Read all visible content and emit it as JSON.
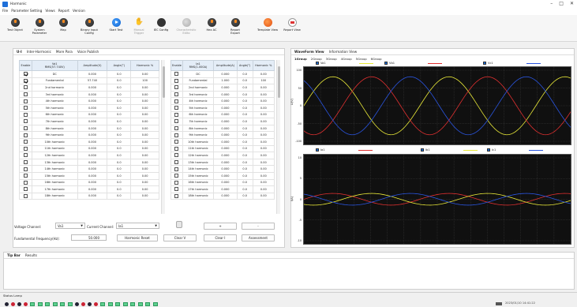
{
  "window": {
    "title": "Harmonic",
    "min": "–",
    "max": "□",
    "close": "✕"
  },
  "menu": [
    "File",
    "Parameter Setting",
    "Views",
    "Report",
    "Version"
  ],
  "toolbar": [
    {
      "label": "Test Object",
      "icon": "dark",
      "enabled": true
    },
    {
      "label": "System\nParameter",
      "icon": "dark",
      "enabled": true
    },
    {
      "label": "Map",
      "icon": "dark",
      "enabled": true
    },
    {
      "label": "Binary input\nConfig",
      "icon": "dark",
      "enabled": true
    },
    {
      "label": "Start Test",
      "icon": "blue",
      "enabled": true
    },
    {
      "label": "Manual\nTrigger",
      "icon": "hand",
      "enabled": false
    },
    {
      "label": "IEC Config",
      "icon": "gear",
      "enabled": true
    },
    {
      "label": "Characteristic\nEdito",
      "icon": "gray",
      "enabled": false
    },
    {
      "label": "Hex AC",
      "icon": "dark",
      "enabled": true
    },
    {
      "label": "Report\nExport",
      "icon": "dark",
      "enabled": true
    },
    {
      "label": "Template View",
      "icon": "orange",
      "enabled": true
    },
    {
      "label": "Report View",
      "icon": "doc",
      "enabled": true
    }
  ],
  "left_tabs": [
    "U-I",
    "Inter-Harmonic",
    "More Para",
    "Voice Publish"
  ],
  "table_left": {
    "headers": [
      "Enable",
      "Va1\nRMS(57.740V)",
      "Amplitude(V)",
      "Angle(°)",
      "Harmonic %"
    ],
    "rows": [
      {
        "on": true,
        "name": "DC",
        "amp": "0.000",
        "ang": "0.0",
        "pct": "0.00"
      },
      {
        "on": true,
        "name": "Fundamental",
        "amp": "57.740",
        "ang": "0.0",
        "pct": "100"
      },
      {
        "on": false,
        "name": "2nd harmonic",
        "amp": "0.000",
        "ang": "0.0",
        "pct": "0.00"
      },
      {
        "on": false,
        "name": "3rd harmonic",
        "amp": "0.000",
        "ang": "0.0",
        "pct": "0.00"
      },
      {
        "on": false,
        "name": "4th harmonic",
        "amp": "0.000",
        "ang": "0.0",
        "pct": "0.00"
      },
      {
        "on": false,
        "name": "5th harmonic",
        "amp": "0.000",
        "ang": "0.0",
        "pct": "0.00"
      },
      {
        "on": false,
        "name": "6th harmonic",
        "amp": "0.000",
        "ang": "0.0",
        "pct": "0.00"
      },
      {
        "on": false,
        "name": "7th harmonic",
        "amp": "0.000",
        "ang": "0.0",
        "pct": "0.00"
      },
      {
        "on": false,
        "name": "8th harmonic",
        "amp": "0.000",
        "ang": "0.0",
        "pct": "0.00"
      },
      {
        "on": false,
        "name": "9th harmonic",
        "amp": "0.000",
        "ang": "0.0",
        "pct": "0.00"
      },
      {
        "on": false,
        "name": "10th harmonic",
        "amp": "0.000",
        "ang": "0.0",
        "pct": "0.00"
      },
      {
        "on": false,
        "name": "11th harmonic",
        "amp": "0.000",
        "ang": "0.0",
        "pct": "0.00"
      },
      {
        "on": false,
        "name": "12th harmonic",
        "amp": "0.000",
        "ang": "0.0",
        "pct": "0.00"
      },
      {
        "on": false,
        "name": "13th harmonic",
        "amp": "0.000",
        "ang": "0.0",
        "pct": "0.00"
      },
      {
        "on": false,
        "name": "14th harmonic",
        "amp": "0.000",
        "ang": "0.0",
        "pct": "0.00"
      },
      {
        "on": false,
        "name": "15th harmonic",
        "amp": "0.000",
        "ang": "0.0",
        "pct": "0.00"
      },
      {
        "on": false,
        "name": "16th harmonic",
        "amp": "0.000",
        "ang": "0.0",
        "pct": "0.00"
      },
      {
        "on": false,
        "name": "17th harmonic",
        "amp": "0.000",
        "ang": "0.0",
        "pct": "0.00"
      },
      {
        "on": false,
        "name": "18th harmonic",
        "amp": "0.000",
        "ang": "0.0",
        "pct": "0.00"
      }
    ]
  },
  "table_right": {
    "headers": [
      "Enable",
      "Ia1\nRMS(1.000A)",
      "Amplitude(A)",
      "Angle(°)",
      "Harmonic %"
    ],
    "rows": [
      {
        "on": false,
        "name": "DC",
        "amp": "0.000",
        "ang": "0.0",
        "pct": "0.00"
      },
      {
        "on": false,
        "name": "Fundamental",
        "amp": "1.000",
        "ang": "0.0",
        "pct": "100"
      },
      {
        "on": false,
        "name": "2nd harmonic",
        "amp": "0.000",
        "ang": "0.0",
        "pct": "0.00"
      },
      {
        "on": false,
        "name": "3rd harmonic",
        "amp": "0.000",
        "ang": "0.0",
        "pct": "0.00"
      },
      {
        "on": false,
        "name": "4th harmonic",
        "amp": "0.000",
        "ang": "0.0",
        "pct": "0.00"
      },
      {
        "on": false,
        "name": "5th harmonic",
        "amp": "0.000",
        "ang": "0.0",
        "pct": "0.00"
      },
      {
        "on": false,
        "name": "6th harmonic",
        "amp": "0.000",
        "ang": "0.0",
        "pct": "0.00"
      },
      {
        "on": false,
        "name": "7th harmonic",
        "amp": "0.000",
        "ang": "0.0",
        "pct": "0.00"
      },
      {
        "on": false,
        "name": "8th harmonic",
        "amp": "0.000",
        "ang": "0.0",
        "pct": "0.00"
      },
      {
        "on": false,
        "name": "9th harmonic",
        "amp": "0.000",
        "ang": "0.0",
        "pct": "0.00"
      },
      {
        "on": false,
        "name": "10th harmonic",
        "amp": "0.000",
        "ang": "0.0",
        "pct": "0.00"
      },
      {
        "on": false,
        "name": "11th harmonic",
        "amp": "0.000",
        "ang": "0.0",
        "pct": "0.00"
      },
      {
        "on": false,
        "name": "12th harmonic",
        "amp": "0.000",
        "ang": "0.0",
        "pct": "0.00"
      },
      {
        "on": false,
        "name": "13th harmonic",
        "amp": "0.000",
        "ang": "0.0",
        "pct": "0.00"
      },
      {
        "on": false,
        "name": "14th harmonic",
        "amp": "0.000",
        "ang": "0.0",
        "pct": "0.00"
      },
      {
        "on": false,
        "name": "15th harmonic",
        "amp": "0.000",
        "ang": "0.0",
        "pct": "0.00"
      },
      {
        "on": false,
        "name": "16th harmonic",
        "amp": "0.000",
        "ang": "0.0",
        "pct": "0.00"
      },
      {
        "on": false,
        "name": "17th harmonic",
        "amp": "0.000",
        "ang": "0.0",
        "pct": "0.00"
      },
      {
        "on": false,
        "name": "18th harmonic",
        "amp": "0.000",
        "ang": "0.0",
        "pct": "0.00"
      }
    ]
  },
  "controls": {
    "voltage_channel_label": "Voltage Channel:",
    "voltage_channel_value": "Va1",
    "current_channel_label": "Current Channel:",
    "current_channel_value": "Ia1",
    "fundamental_label": "Fundamental Frequency(Hz):",
    "fundamental_value": "50.000",
    "harmonic_reset": "Harmonic Reset",
    "clear_v": "Clear V",
    "clear_i": "Clear I",
    "assessment": "Assessment",
    "plus": "+",
    "minus": "-"
  },
  "right_tabs": [
    "WaveForm View",
    "Information View"
  ],
  "group_tabs": [
    "1Group",
    "2Group",
    "3Group",
    "4Group",
    "5Group",
    "6Group"
  ],
  "colors": {
    "phaseA": "#e8e838",
    "phaseB": "#e03030",
    "phaseC": "#2a55e0",
    "accent": "#1e6fd9"
  },
  "chart_data": [
    {
      "type": "line",
      "ylabel": "U(V)",
      "ylim": [
        -100,
        100
      ],
      "yticks": [
        "100",
        "50",
        "0",
        "-50",
        "-100"
      ],
      "series": [
        {
          "name": "Va1",
          "amplitude": 81.66,
          "phase_deg": 0
        },
        {
          "name": "Vb1",
          "amplitude": 81.66,
          "phase_deg": -120
        },
        {
          "name": "Vc1",
          "amplitude": 81.66,
          "phase_deg": 120
        }
      ],
      "cycles": 2.3,
      "grid": true,
      "legend": "top"
    },
    {
      "type": "line",
      "ylabel": "I(A)",
      "ylim": [
        -10,
        10
      ],
      "yticks": [
        "10",
        "5",
        "0",
        "-5",
        "-10"
      ],
      "series": [
        {
          "name": "Ia1",
          "amplitude": 1.414,
          "phase_deg": 0
        },
        {
          "name": "Ib1",
          "amplitude": 1.414,
          "phase_deg": -120
        },
        {
          "name": "Ic1",
          "amplitude": 1.414,
          "phase_deg": 120
        }
      ],
      "cycles": 2.3,
      "grid": true,
      "legend": "top"
    }
  ],
  "bottom_tabs": [
    "Tip Bar",
    "Results"
  ],
  "status": {
    "label": "Status Lamp",
    "clock": "2023/01/10 14:41:22"
  }
}
